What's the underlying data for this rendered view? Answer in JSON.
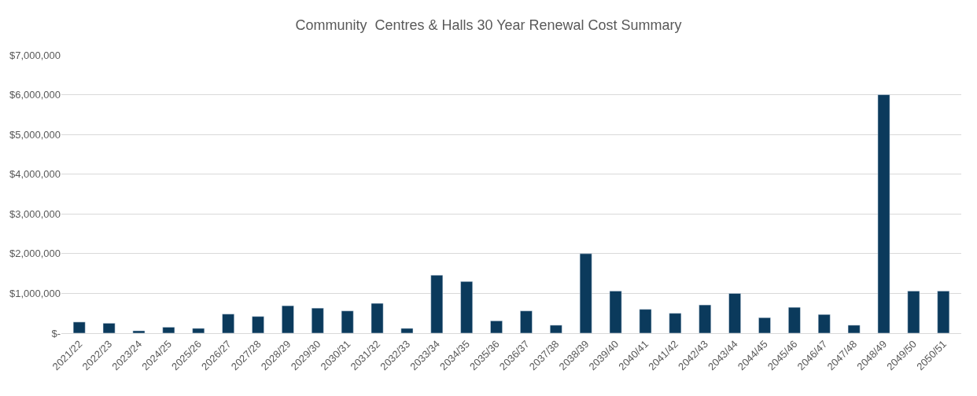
{
  "chart_data": {
    "type": "bar",
    "title": "Community  Centres & Halls 30 Year Renewal Cost Summary",
    "categories": [
      "2021/22",
      "2022/23",
      "2023/24",
      "2024/25",
      "2025/26",
      "2026/27",
      "2027/28",
      "2028/29",
      "2029/30",
      "2030/31",
      "2031/32",
      "2032/33",
      "2033/34",
      "2034/35",
      "2035/36",
      "2036/37",
      "2037/38",
      "2038/39",
      "2039/40",
      "2040/41",
      "2041/42",
      "2042/43",
      "2043/44",
      "2044/45",
      "2045/46",
      "2046/47",
      "2047/48",
      "2048/49",
      "2049/50",
      "2050/51"
    ],
    "values": [
      280000,
      250000,
      60000,
      150000,
      120000,
      480000,
      420000,
      690000,
      630000,
      560000,
      750000,
      120000,
      1460000,
      1300000,
      310000,
      560000,
      200000,
      2000000,
      1060000,
      600000,
      500000,
      710000,
      1000000,
      390000,
      650000,
      470000,
      200000,
      6000000,
      1060000,
      1060000
    ],
    "color": "#0b3a5c",
    "ylim": [
      0,
      7000000
    ],
    "yticks": [
      {
        "value": 0,
        "label": "$-"
      },
      {
        "value": 1000000,
        "label": "$1,000,000"
      },
      {
        "value": 2000000,
        "label": "$2,000,000"
      },
      {
        "value": 3000000,
        "label": "$3,000,000"
      },
      {
        "value": 4000000,
        "label": "$4,000,000"
      },
      {
        "value": 5000000,
        "label": "$5,000,000"
      },
      {
        "value": 6000000,
        "label": "$6,000,000"
      },
      {
        "value": 7000000,
        "label": "$7,000,000"
      }
    ],
    "grid": "y",
    "legend": false
  }
}
